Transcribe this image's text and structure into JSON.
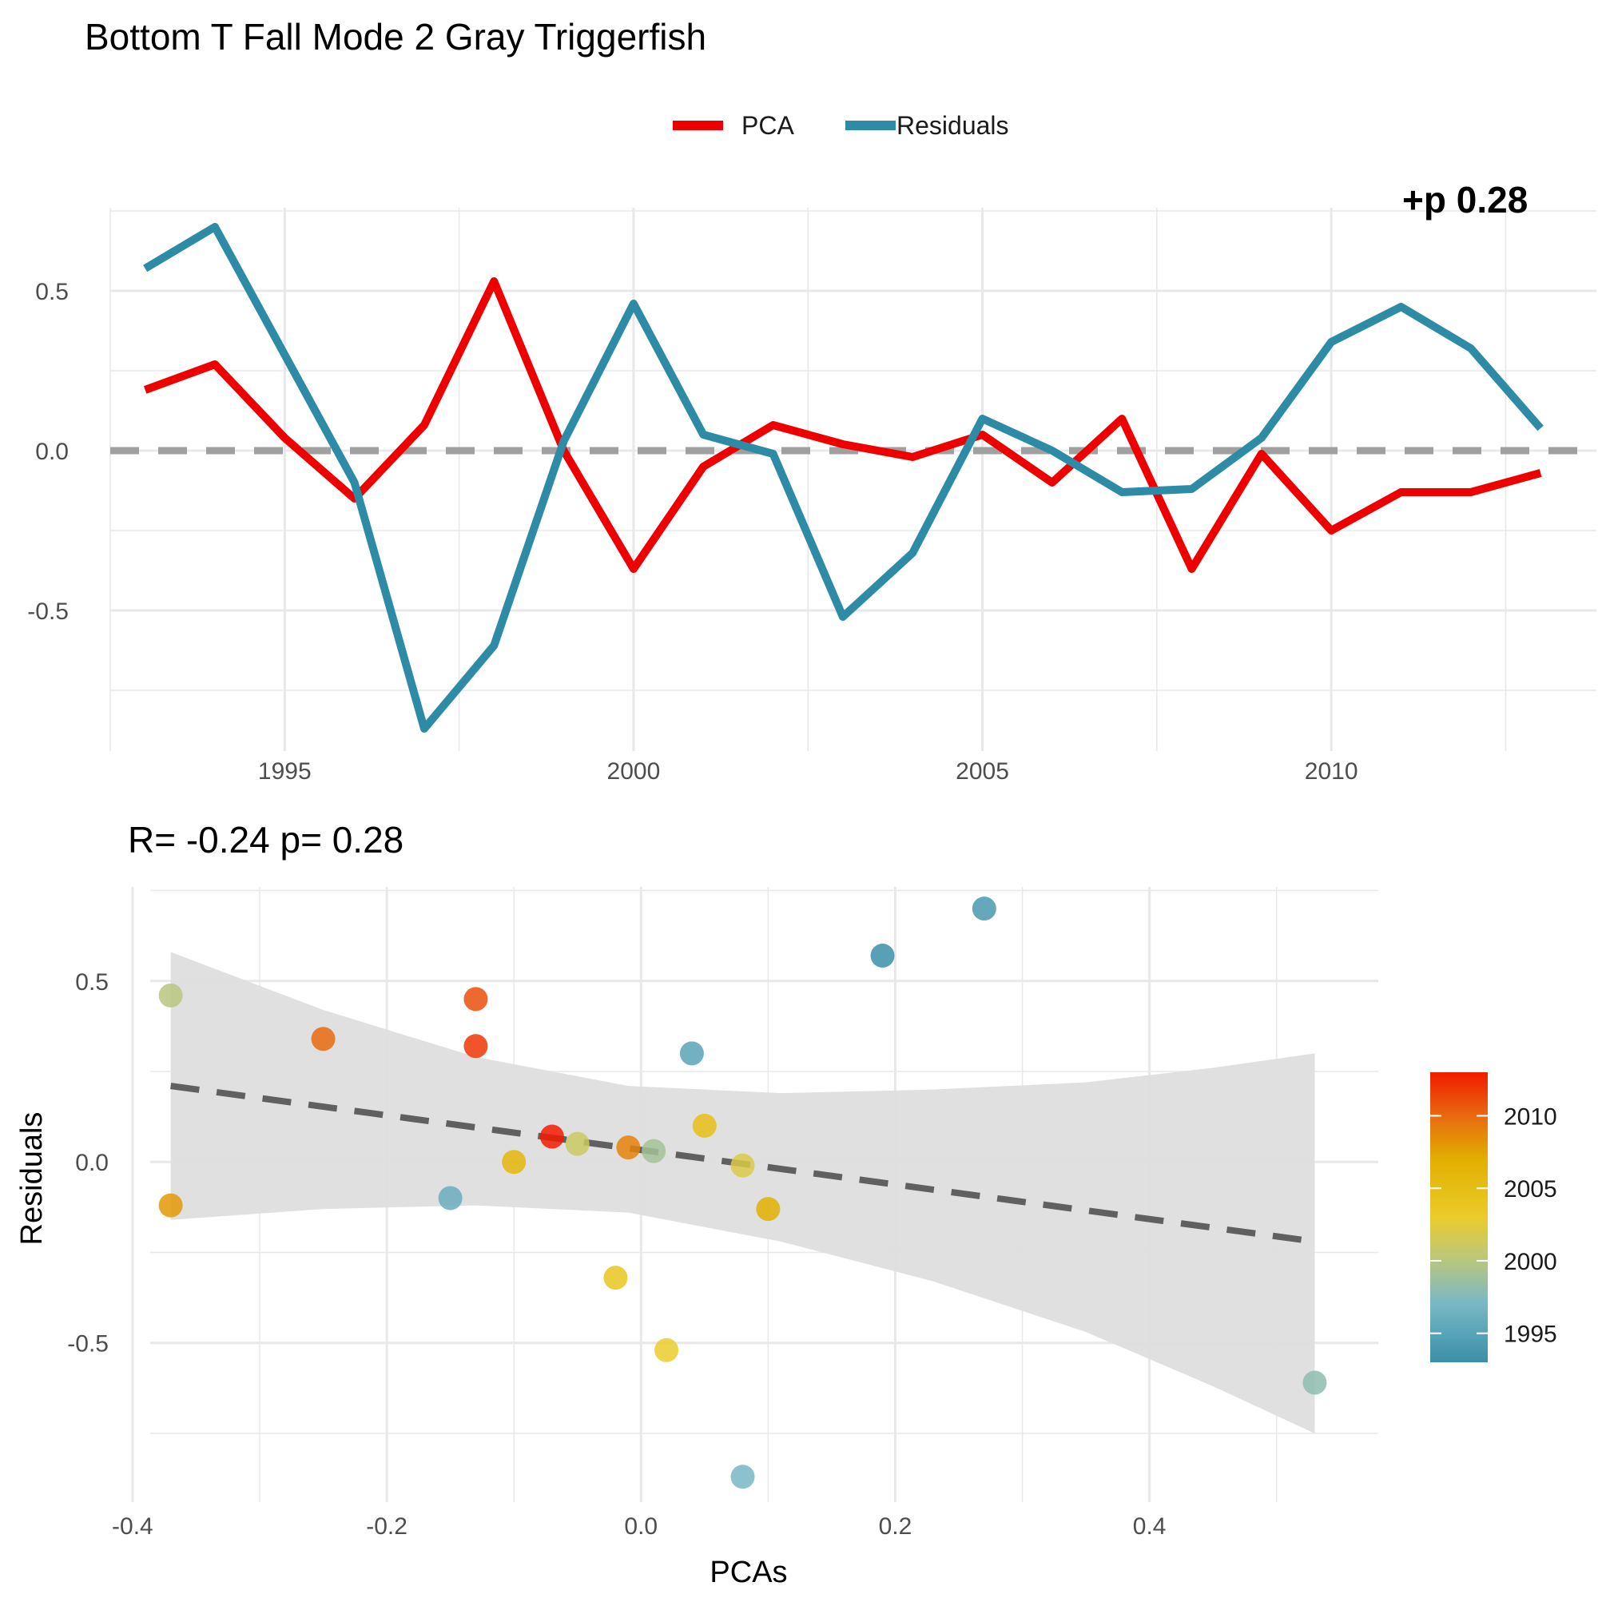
{
  "title": "Bottom T Fall Mode 2 Gray Triggerfish",
  "legend": {
    "items": [
      {
        "label": "PCA",
        "color": "#EE0000"
      },
      {
        "label": "Residuals",
        "color": "#2E8BA6"
      }
    ]
  },
  "top_overflow_text": "+p  0.28",
  "scatter_annotation": "R= -0.24  p= 0.28",
  "colors": {
    "pca": "#EE0000",
    "residuals": "#2E8BA6",
    "zero_line": "#A0A0A0",
    "grid": "#E8E8E8",
    "ribbon": "#DEDEDE",
    "fit_line": "#606060"
  },
  "chart_data": [
    {
      "type": "line",
      "x": [
        1993,
        1994,
        1995,
        1996,
        1997,
        1998,
        1999,
        2000,
        2001,
        2002,
        2003,
        2004,
        2005,
        2006,
        2007,
        2008,
        2009,
        2010,
        2011,
        2012,
        2013
      ],
      "series": [
        {
          "name": "PCA",
          "values": [
            0.19,
            0.27,
            0.04,
            -0.15,
            0.08,
            0.53,
            0.0,
            -0.37,
            -0.05,
            0.08,
            0.02,
            -0.02,
            0.05,
            -0.1,
            0.1,
            -0.37,
            -0.01,
            -0.25,
            -0.13,
            -0.13,
            -0.07
          ]
        },
        {
          "name": "Residuals",
          "values": [
            0.57,
            0.7,
            0.3,
            -0.1,
            -0.87,
            -0.61,
            0.03,
            0.46,
            0.05,
            -0.01,
            -0.52,
            -0.32,
            0.1,
            0.0,
            -0.13,
            -0.12,
            0.04,
            0.34,
            0.45,
            0.32,
            0.07
          ]
        }
      ],
      "xlim": [
        1992.5,
        2013.8
      ],
      "ylim": [
        -0.94,
        0.76
      ],
      "x_ticks": [
        "1995",
        "2000",
        "2005",
        "2010"
      ],
      "x_tick_values": [
        1995,
        2000,
        2005,
        2010
      ],
      "y_ticks": [
        "0.5",
        "0.0",
        "-0.5"
      ],
      "y_tick_values": [
        0.5,
        0.0,
        -0.5
      ],
      "reference_line": 0,
      "grid": true,
      "legend_placement": "top"
    },
    {
      "type": "scatter",
      "xlabel": "PCAs",
      "ylabel": "Residuals",
      "xlim": [
        -0.41,
        0.58
      ],
      "ylim": [
        -0.94,
        0.76
      ],
      "x_ticks": [
        "-0.4",
        "-0.2",
        "0.0",
        "0.2",
        "0.4"
      ],
      "x_tick_values": [
        -0.4,
        -0.2,
        0.0,
        0.2,
        0.4
      ],
      "y_ticks": [
        "0.5",
        "0.0",
        "-0.5"
      ],
      "y_tick_values": [
        0.5,
        0.0,
        -0.5
      ],
      "points": [
        {
          "year": 1993,
          "x": 0.19,
          "y": 0.57
        },
        {
          "year": 1994,
          "x": 0.27,
          "y": 0.7
        },
        {
          "year": 1995,
          "x": 0.04,
          "y": 0.3
        },
        {
          "year": 1996,
          "x": -0.15,
          "y": -0.1
        },
        {
          "year": 1997,
          "x": 0.08,
          "y": -0.87
        },
        {
          "year": 1998,
          "x": 0.53,
          "y": -0.61
        },
        {
          "year": 1999,
          "x": 0.01,
          "y": 0.03
        },
        {
          "year": 2000,
          "x": -0.37,
          "y": 0.46
        },
        {
          "year": 2001,
          "x": -0.05,
          "y": 0.05
        },
        {
          "year": 2002,
          "x": 0.08,
          "y": -0.01
        },
        {
          "year": 2003,
          "x": 0.02,
          "y": -0.52
        },
        {
          "year": 2004,
          "x": -0.02,
          "y": -0.32
        },
        {
          "year": 2005,
          "x": 0.05,
          "y": 0.1
        },
        {
          "year": 2006,
          "x": -0.1,
          "y": 0.0
        },
        {
          "year": 2007,
          "x": 0.1,
          "y": -0.13
        },
        {
          "year": 2008,
          "x": -0.37,
          "y": -0.12
        },
        {
          "year": 2009,
          "x": -0.01,
          "y": 0.04
        },
        {
          "year": 2010,
          "x": -0.25,
          "y": 0.34
        },
        {
          "year": 2011,
          "x": -0.13,
          "y": 0.45
        },
        {
          "year": 2012,
          "x": -0.13,
          "y": 0.32
        },
        {
          "year": 2013,
          "x": -0.07,
          "y": 0.07
        }
      ],
      "fit": {
        "x": [
          -0.37,
          0.53
        ],
        "y": [
          0.21,
          -0.22
        ]
      },
      "ribbon": {
        "x": [
          -0.37,
          -0.25,
          -0.13,
          -0.01,
          0.11,
          0.23,
          0.35,
          0.45,
          0.53
        ],
        "upper": [
          0.58,
          0.42,
          0.29,
          0.21,
          0.19,
          0.2,
          0.22,
          0.26,
          0.3
        ],
        "lower": [
          -0.16,
          -0.13,
          -0.12,
          -0.14,
          -0.22,
          -0.33,
          -0.47,
          -0.62,
          -0.75
        ]
      },
      "colorbar": {
        "label_ticks": [
          "2010",
          "2005",
          "2000",
          "1995"
        ],
        "tick_values": [
          2010,
          2005,
          2000,
          1995
        ],
        "range": [
          1993,
          2013
        ],
        "stops": [
          {
            "year": 1993,
            "color": "#3A8FA8"
          },
          {
            "year": 1997,
            "color": "#78B7C5"
          },
          {
            "year": 2000,
            "color": "#B8C77F"
          },
          {
            "year": 2003,
            "color": "#EBCC2A"
          },
          {
            "year": 2007,
            "color": "#E1AF00"
          },
          {
            "year": 2010,
            "color": "#E86A10"
          },
          {
            "year": 2013,
            "color": "#F21A00"
          }
        ]
      },
      "legend_placement": "right"
    }
  ]
}
